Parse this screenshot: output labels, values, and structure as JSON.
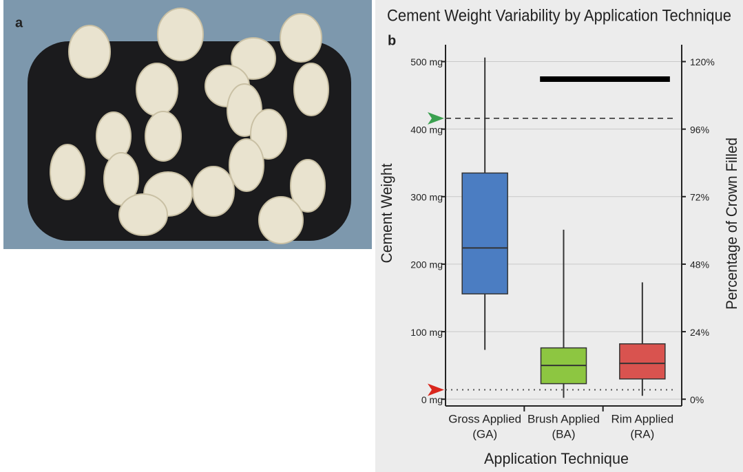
{
  "panel_a": {
    "label": "a"
  },
  "chart_data": {
    "type": "box",
    "panel_label": "b",
    "title": "Cement Weight Variability by Application Technique",
    "x_label": "Application Technique",
    "y_label": "Cement Weight",
    "y2_label": "Percentage of Crown Filled",
    "categories": [
      [
        "Gross Applied",
        "(GA)"
      ],
      [
        "Brush Applied",
        "(BA)"
      ],
      [
        "Rim Applied",
        "(RA)"
      ]
    ],
    "boxes": [
      {
        "min": 73,
        "q1": 156,
        "median": 224,
        "q3": 335,
        "max": 506,
        "color": "#4b7dc2"
      },
      {
        "min": 2,
        "q1": 23,
        "median": 50,
        "q3": 76,
        "max": 251,
        "color": "#8dc641"
      },
      {
        "min": 5,
        "q1": 30,
        "median": 53,
        "q3": 82,
        "max": 173,
        "color": "#d9534f"
      }
    ],
    "ylim": [
      -10,
      525
    ],
    "yticks": [
      {
        "value": 0,
        "label": "0 mg"
      },
      {
        "value": 100,
        "label": "100 mg"
      },
      {
        "value": 200,
        "label": "200 mg"
      },
      {
        "value": 300,
        "label": "300 mg"
      },
      {
        "value": 400,
        "label": "400 mg"
      },
      {
        "value": 500,
        "label": "500 mg"
      }
    ],
    "y2lim": [
      -2.4,
      126
    ],
    "y2ticks": [
      {
        "value": 0,
        "label": "0%"
      },
      {
        "value": 24,
        "label": "24%"
      },
      {
        "value": 48,
        "label": "48%"
      },
      {
        "value": 72,
        "label": "72%"
      },
      {
        "value": 96,
        "label": "96%"
      },
      {
        "value": 120,
        "label": "120%"
      }
    ],
    "grid": true,
    "reference_lines": [
      {
        "value": 416,
        "style": "dashed",
        "color": "#3aa04f"
      },
      {
        "value": 14,
        "style": "dotted",
        "color": "#d9261c"
      }
    ],
    "bracket": {
      "value": 474
    }
  }
}
